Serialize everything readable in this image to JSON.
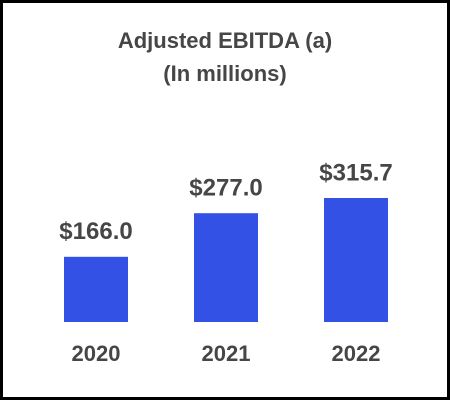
{
  "chart_data": {
    "type": "bar",
    "title": "Adjusted EBITDA (a)",
    "subtitle": "(In millions)",
    "categories": [
      "2020",
      "2021",
      "2022"
    ],
    "values": [
      166.0,
      277.0,
      315.7
    ],
    "value_labels": [
      "$166.0",
      "$277.0",
      "$315.7"
    ],
    "color": "#3451e6"
  }
}
